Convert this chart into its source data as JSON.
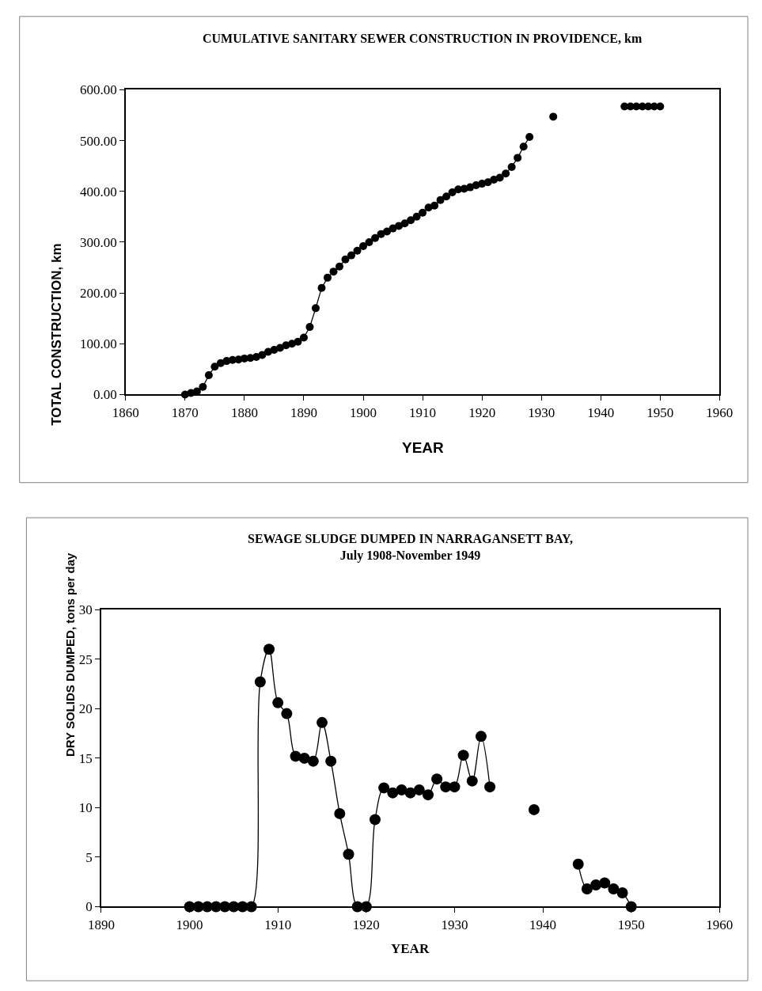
{
  "chart_data": [
    {
      "type": "line",
      "title": "CUMULATIVE SANITARY SEWER CONSTRUCTION IN PROVIDENCE, km",
      "xlabel": "YEAR",
      "ylabel": "TOTAL CONSTRUCTION, km",
      "x": [
        1870,
        1871,
        1872,
        1873,
        1874,
        1875,
        1876,
        1877,
        1878,
        1879,
        1880,
        1881,
        1882,
        1883,
        1884,
        1885,
        1886,
        1887,
        1888,
        1889,
        1890,
        1891,
        1892,
        1893,
        1894,
        1895,
        1896,
        1897,
        1898,
        1899,
        1900,
        1901,
        1902,
        1903,
        1904,
        1905,
        1906,
        1907,
        1908,
        1909,
        1910,
        1911,
        1912,
        1913,
        1914,
        1915,
        1916,
        1917,
        1918,
        1919,
        1920,
        1921,
        1922,
        1923,
        1924,
        1925,
        1926,
        1927,
        1928,
        1929,
        1930,
        1931,
        1932,
        1933,
        1934,
        1935,
        1936,
        1937,
        1938,
        1939,
        1940,
        1941,
        1942,
        1943,
        1944,
        1945,
        1946,
        1947,
        1948,
        1949,
        1950
      ],
      "series": [
        {
          "color": "#000000",
          "values": [
            0,
            3,
            6,
            15,
            38,
            55,
            62,
            66,
            68,
            69,
            71,
            72,
            74,
            78,
            84,
            88,
            92,
            97,
            100,
            104,
            112,
            133,
            170,
            210,
            230,
            242,
            252,
            266,
            274,
            283,
            292,
            300,
            308,
            316,
            321,
            327,
            332,
            337,
            343,
            350,
            358,
            368,
            372,
            383,
            390,
            398,
            404,
            405,
            408,
            412,
            415,
            418,
            423,
            427,
            435,
            448,
            466,
            488,
            507,
            null,
            null,
            null,
            547,
            null,
            null,
            null,
            null,
            null,
            null,
            null,
            null,
            null,
            null,
            null,
            567,
            567,
            567,
            567,
            567,
            567,
            567
          ]
        }
      ],
      "xlim": [
        1860,
        1960
      ],
      "xticks": [
        1860,
        1870,
        1880,
        1890,
        1900,
        1910,
        1920,
        1930,
        1940,
        1950,
        1960
      ],
      "ylim": [
        0,
        600
      ],
      "yticks": [
        {
          "value": 0,
          "label": "0.00"
        },
        {
          "value": 100,
          "label": "100.00"
        },
        {
          "value": 200,
          "label": "200.00"
        },
        {
          "value": 300,
          "label": "300.00"
        },
        {
          "value": 400,
          "label": "400.00"
        },
        {
          "value": 500,
          "label": "500.00"
        },
        {
          "value": 600,
          "label": "600.00"
        }
      ],
      "grid": false,
      "marker": "circle",
      "line_style": "solid"
    },
    {
      "type": "line",
      "title": "SEWAGE SLUDGE DUMPED IN NARRAGANSETT BAY,",
      "subtitle": "July 1908-November 1949",
      "xlabel": "YEAR",
      "ylabel": "DRY SOLIDS DUMPED, tons per day",
      "x": [
        1900,
        1901,
        1902,
        1903,
        1904,
        1905,
        1906,
        1907,
        1908,
        1909,
        1910,
        1911,
        1912,
        1913,
        1914,
        1915,
        1916,
        1917,
        1918,
        1919,
        1920,
        1921,
        1922,
        1923,
        1924,
        1925,
        1926,
        1927,
        1928,
        1929,
        1930,
        1931,
        1932,
        1933,
        1934,
        1935,
        1936,
        1937,
        1938,
        1939,
        1940,
        1941,
        1942,
        1943,
        1944,
        1945,
        1946,
        1947,
        1948,
        1949,
        1950
      ],
      "series": [
        {
          "color": "#000000",
          "values": [
            0,
            0,
            0,
            0,
            0,
            0,
            0,
            0,
            22.7,
            26,
            20.6,
            19.5,
            15.2,
            15.0,
            14.7,
            18.6,
            14.7,
            9.4,
            5.3,
            0,
            0,
            8.8,
            12.0,
            11.5,
            11.8,
            11.5,
            11.8,
            11.3,
            12.9,
            12.1,
            12.1,
            15.3,
            12.7,
            17.2,
            12.1,
            null,
            null,
            null,
            null,
            9.8,
            null,
            null,
            null,
            null,
            4.3,
            1.8,
            2.2,
            2.4,
            1.8,
            1.4,
            0
          ]
        }
      ],
      "xlim": [
        1890,
        1960
      ],
      "xticks": [
        1890,
        1900,
        1910,
        1920,
        1930,
        1940,
        1950,
        1960
      ],
      "ylim": [
        0,
        30
      ],
      "yticks": [
        0,
        5,
        10,
        15,
        20,
        25,
        30
      ],
      "grid": false,
      "marker": "circle",
      "line_style": "solid"
    }
  ]
}
